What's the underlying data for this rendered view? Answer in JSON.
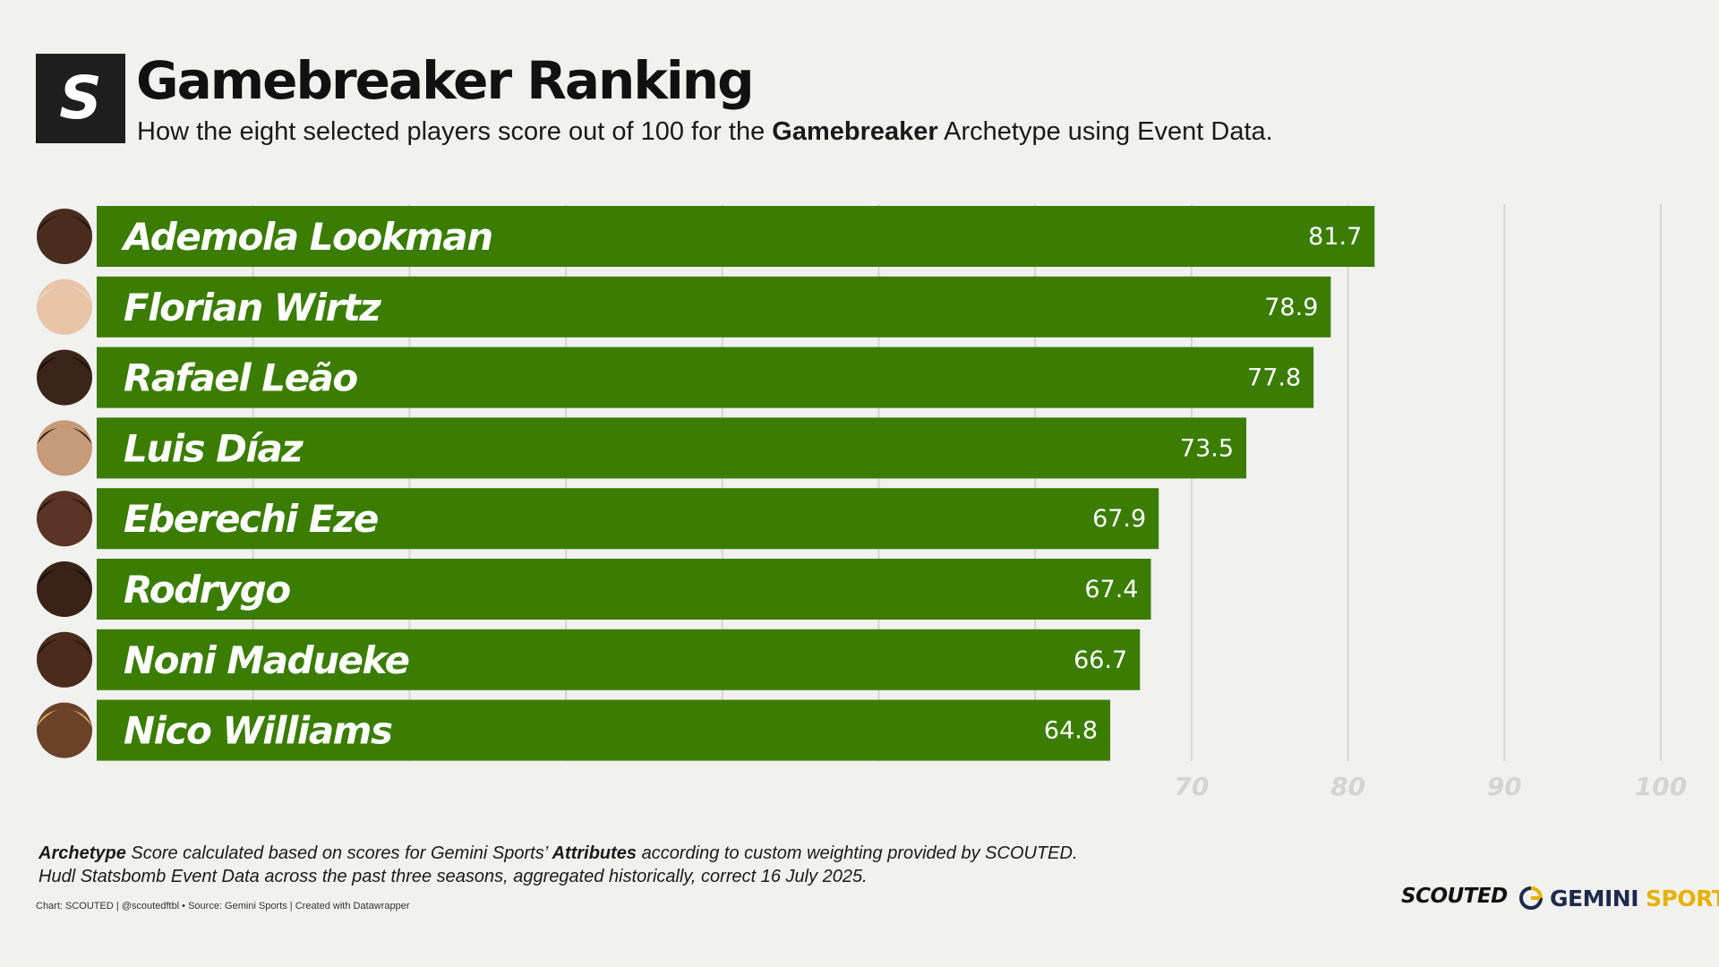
{
  "header": {
    "logo_letter": "S",
    "title": "Gamebreaker Ranking",
    "subtitle_pre": "How the eight selected players score out of 100 for the ",
    "subtitle_bold": "Gamebreaker",
    "subtitle_post": " Archetype using Event Data."
  },
  "chart_data": {
    "type": "bar",
    "orientation": "horizontal",
    "title": "Gamebreaker Ranking",
    "categories": [
      "Ademola Lookman",
      "Florian Wirtz",
      "Rafael Leão",
      "Luis Díaz",
      "Eberechi Eze",
      "Rodrygo",
      "Noni Madueke",
      "Nico Williams"
    ],
    "values": [
      81.7,
      78.9,
      77.8,
      73.5,
      67.9,
      67.4,
      66.7,
      64.8
    ],
    "value_labels": [
      "81.7",
      "78.9",
      "77.8",
      "73.5",
      "67.9",
      "67.4",
      "66.7",
      "64.8"
    ],
    "xlim": [
      0,
      100
    ],
    "ticks": [
      70,
      80,
      90,
      100
    ],
    "tick_labels": [
      "70",
      "80",
      "90",
      "100"
    ],
    "gridlines": [
      10,
      20,
      30,
      40,
      50,
      60,
      70,
      80,
      90,
      100
    ],
    "bar_color": "#3a7d02",
    "grid": true,
    "xlabel": "",
    "ylabel": ""
  },
  "footnote": {
    "line1_bold": "Archetype",
    "line1_mid": " Score calculated based on scores for Gemini Sports’ ",
    "line1_bold2": "Attributes",
    "line1_post": " according to custom weighting provided by SCOUTED.",
    "line2": "Hudl Statsbomb Event Data across the past three seasons, aggregated historically, correct 16 July 2025."
  },
  "credit": "Chart: SCOUTED | @scoutedftbl • Source: Gemini Sports | Created with Datawrapper",
  "brand": {
    "scouted": "SCOUTED",
    "gemini": "GEMINI",
    "sports": "SPORTS"
  },
  "colors": {
    "background": "#f1f1f0",
    "bar": "#3a7d02",
    "gemini_navy": "#1d2a4a",
    "gemini_gold": "#e8b100"
  }
}
